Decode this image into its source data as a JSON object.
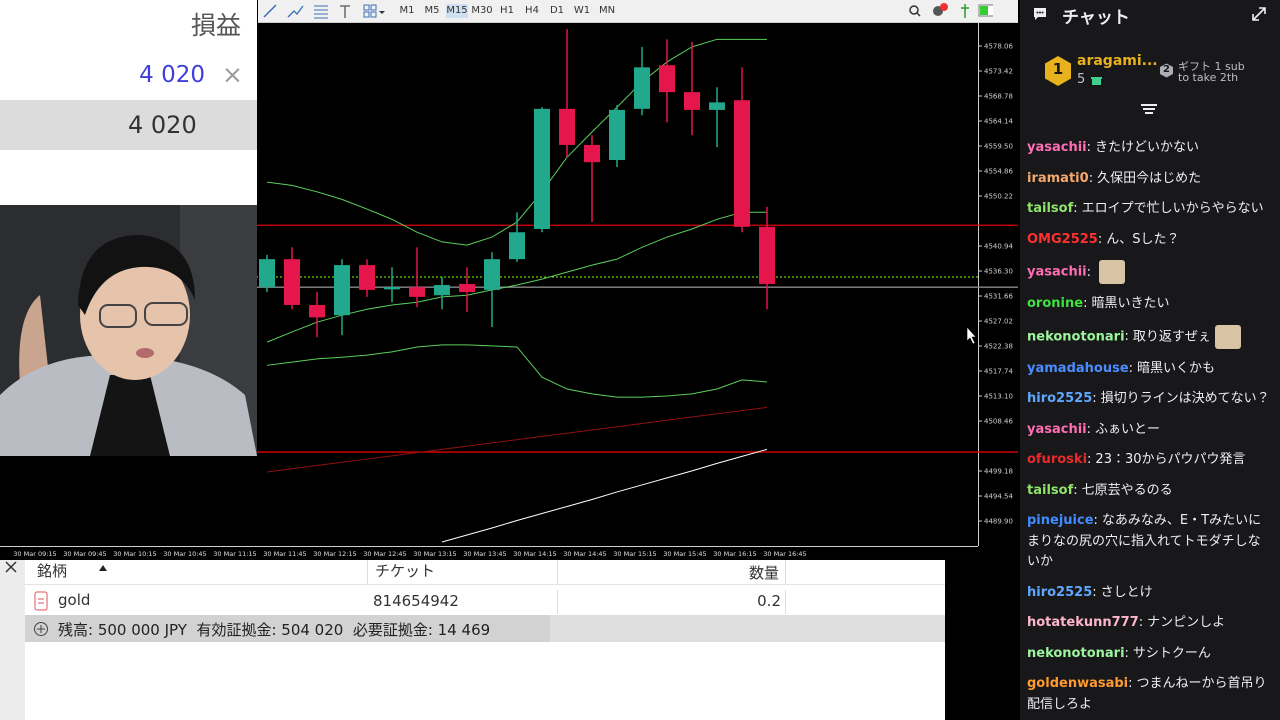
{
  "profit_panel": {
    "title": "損益",
    "value": "4 020",
    "close": "×",
    "total": "4 020"
  },
  "toolbar": {
    "timeframes": [
      "M1",
      "M5",
      "M15",
      "M30",
      "H1",
      "H4",
      "D1",
      "W1",
      "MN"
    ]
  },
  "chart_data": {
    "type": "candlestick",
    "categories": [
      null,
      null,
      null,
      null,
      null,
      null,
      null,
      null,
      null,
      null,
      null,
      null,
      null,
      null,
      null,
      null,
      null,
      null,
      null,
      null,
      null
    ],
    "open": [
      4533.3,
      4538.5,
      4530.0,
      4528.1,
      4537.4,
      4532.9,
      4533.3,
      4531.8,
      4533.9,
      4532.8,
      4538.5,
      4544.1,
      4566.4,
      4559.7,
      4556.9,
      4566.4,
      4574.5,
      4569.5,
      4566.2,
      4568.0,
      4544.5
    ],
    "high": [
      4539.3,
      4540.7,
      4532.4,
      4538.5,
      4538.5,
      4537.0,
      4540.7,
      4535.2,
      4537.0,
      4539.8,
      4547.2,
      4566.7,
      4581.2,
      4561.5,
      4567.1,
      4577.9,
      4579.3,
      4578.8,
      4570.4,
      4574.1,
      4548.2
    ],
    "low": [
      4532.4,
      4529.2,
      4524.0,
      4524.4,
      4531.5,
      4530.5,
      4529.6,
      4529.2,
      4528.7,
      4525.9,
      4538.0,
      4543.5,
      4557.4,
      4545.4,
      4555.6,
      4565.2,
      4563.9,
      4561.5,
      4559.3,
      4543.5,
      4529.2
    ],
    "close": [
      4538.5,
      4530.0,
      4527.7,
      4537.4,
      4532.8,
      4533.3,
      4531.5,
      4533.7,
      4532.4,
      4538.5,
      4543.5,
      4566.4,
      4559.7,
      4556.5,
      4566.2,
      4574.1,
      4569.5,
      4566.2,
      4567.6,
      4544.5,
      4533.9
    ],
    "up_color": "#22a88c",
    "down_color": "#e5164b",
    "indicators": [
      {
        "color": "#5ccf5c",
        "values": [
          4552.8,
          4552.2,
          4551.0,
          4549.6,
          4547.8,
          4545.9,
          4543.5,
          4541.7,
          4541.1,
          4542.6,
          4545.4,
          4551.0,
          4557.4,
          4562.1,
          4566.7,
          4571.4,
          4575.1,
          4577.9,
          4579.3,
          4579.3,
          4579.3
        ]
      },
      {
        "color": "#5ccf5c",
        "values": [
          4523.1,
          4525.0,
          4526.8,
          4528.1,
          4529.2,
          4530.0,
          4530.5,
          4531.5,
          4531.8,
          4532.8,
          4533.7,
          4534.8,
          4536.1,
          4537.4,
          4538.5,
          4540.7,
          4542.6,
          4544.1,
          4545.9,
          4547.2,
          4547.2
        ]
      },
      {
        "color": "#5ccf5c",
        "values": [
          4518.8,
          4519.4,
          4520.0,
          4520.3,
          4520.7,
          4521.3,
          4522.2,
          4522.6,
          4522.6,
          4522.4,
          4522.2,
          4516.6,
          4514.4,
          4513.5,
          4512.9,
          4512.9,
          4513.1,
          4513.5,
          4514.4,
          4516.1,
          4515.7
        ]
      },
      {
        "color": "#8e1212",
        "values": [
          4499.0,
          4499.6,
          4500.2,
          4500.8,
          4501.4,
          4502.0,
          4502.6,
          4503.2,
          4503.8,
          4504.4,
          4505.0,
          4505.6,
          4506.2,
          4506.8,
          4507.4,
          4508.0,
          4508.6,
          4509.2,
          4509.8,
          4510.4,
          4511.0
        ]
      },
      {
        "color": "#ffffff",
        "values": [
          null,
          null,
          null,
          null,
          null,
          null,
          null,
          4486.0,
          4487.3,
          4488.6,
          4490.0,
          4491.3,
          4492.6,
          4493.9,
          4495.3,
          4496.6,
          4497.9,
          4499.2,
          4500.6,
          4501.9,
          4503.2
        ]
      }
    ],
    "levels": [
      {
        "value": 4544.8,
        "color": "#e00000",
        "dashed": false
      },
      {
        "value": 4535.2,
        "color": "#7fff00",
        "dashed": true
      },
      {
        "value": 4533.3,
        "color": "#8a8a8a",
        "dashed": false
      },
      {
        "value": 4502.7,
        "color": "#e00000",
        "dashed": false
      }
    ],
    "ylim": [
      4485.45,
      4581.96
    ],
    "yticks": [
      4578.06,
      4573.42,
      4568.78,
      4564.14,
      {
        "value": 4559.5,
        "label": "4559.50"
      },
      4554.86,
      4550.22,
      4540.94,
      {
        "value": 4536.3,
        "label": "4536.30"
      },
      4531.66,
      4527.02,
      4522.38,
      4517.74,
      {
        "value": 4513.1,
        "label": "4513.10"
      },
      4508.46,
      4499.18,
      4494.54,
      {
        "value": 4489.9,
        "label": "4489.90"
      }
    ],
    "time_labels": [
      "30 Mar 09:15",
      "30 Mar 09:45",
      "30 Mar 10:15",
      "30 Mar 10:45",
      "30 Mar 11:15",
      "30 Mar 11:45",
      "30 Mar 12:15",
      "30 Mar 12:45",
      "30 Mar 13:15",
      "30 Mar 13:45",
      "30 Mar 14:15",
      "30 Mar 14:45",
      "30 Mar 15:15",
      "30 Mar 15:45",
      "30 Mar 16:15",
      "30 Mar 16:45"
    ]
  },
  "orders": {
    "headers": [
      "銘柄",
      "チケット",
      "数量"
    ],
    "rows": [
      [
        "gold",
        "814654942",
        "0.2"
      ]
    ],
    "summary": "残高: 500 000 JPY  有効証拠金: 504 020  必要証拠金: 14 469"
  },
  "chat": {
    "title": "チャット",
    "leader": {
      "rank": "1",
      "name": "aragami...",
      "count": "5"
    },
    "gift": {
      "rank": "2",
      "line1": "ギフト 1 sub",
      "line2": "to take 2th"
    },
    "separator": ":",
    "messages": [
      {
        "user": "yasachii",
        "color": "#ff6eb4",
        "text": "きたけどいかない"
      },
      {
        "user": "iramati0",
        "color": "#f5a76c",
        "text": "久保田今はじめた"
      },
      {
        "user": "tailsof",
        "color": "#8fe36a",
        "text": "エロイプで忙しいからやらない"
      },
      {
        "user": "OMG2525",
        "color": "#ff3030",
        "text": "ん、Sした？"
      },
      {
        "user": "yasachii",
        "color": "#ff6eb4",
        "emote": true
      },
      {
        "user": "oronine",
        "color": "#3fe03f",
        "text": "暗黒いきたい"
      },
      {
        "user": "nekonotonari",
        "color": "#9cf59c",
        "text": "取り返すぜぇ",
        "emote": true
      },
      {
        "user": "yamadahouse",
        "color": "#4a8cff",
        "text": "暗黒いくかも"
      },
      {
        "user": "hiro2525",
        "color": "#5fa8ff",
        "text": "損切りラインは決めてない？"
      },
      {
        "user": "yasachii",
        "color": "#ff6eb4",
        "text": "ふぁいとー"
      },
      {
        "user": "ofuroski",
        "color": "#e82a2a",
        "text": "23：30からパウパウ発言"
      },
      {
        "user": "tailsof",
        "color": "#8fe36a",
        "text": "七原芸やるのる"
      },
      {
        "user": "pinejuice",
        "color": "#3f8cff",
        "text": "なあみなみ、E・Tみたいにまりなの尻の穴に指入れてトモダチしないか"
      },
      {
        "user": "hiro2525",
        "color": "#5fa8ff",
        "text": "さしとけ"
      },
      {
        "user": "hotatekunn777",
        "color": "#ffb6c8",
        "text": "ナンピンしよ"
      },
      {
        "user": "nekonotonari",
        "color": "#9cf59c",
        "text": "サシトクーん"
      },
      {
        "user": "goldenwasabi",
        "color": "#ff9a2e",
        "text": "つまんねーから首吊り配信しろよ"
      }
    ]
  }
}
